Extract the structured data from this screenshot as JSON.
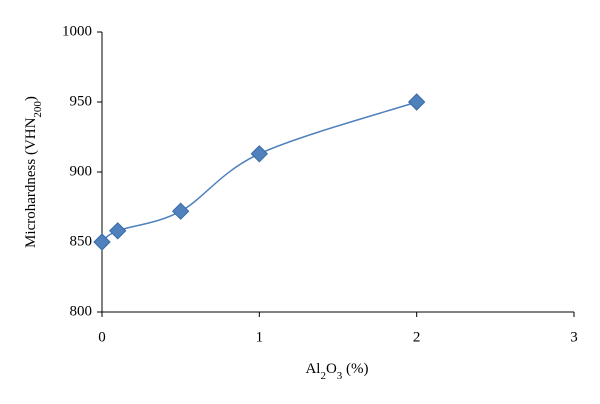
{
  "chart_data": {
    "type": "line",
    "xlabel": [
      {
        "text": "Al"
      },
      {
        "text": "2",
        "sub": true
      },
      {
        "text": "O"
      },
      {
        "text": "3",
        "sub": true
      },
      {
        "text": " (%)"
      }
    ],
    "ylabel": [
      {
        "text": "Microhardness (VHN"
      },
      {
        "text": "200",
        "sub": true
      },
      {
        "text": ")"
      }
    ],
    "x": [
      0,
      0.1,
      0.5,
      1,
      2
    ],
    "series": [
      {
        "color": "#4f81bd",
        "values": [
          850,
          858,
          872,
          913,
          950
        ]
      }
    ],
    "xlim": [
      0,
      3
    ],
    "xticks": [
      0,
      1,
      2,
      3
    ],
    "ylim": [
      800,
      1000
    ],
    "yticks": [
      800,
      850,
      900,
      950,
      1000
    ],
    "smooth": true,
    "marker": "diamond"
  }
}
